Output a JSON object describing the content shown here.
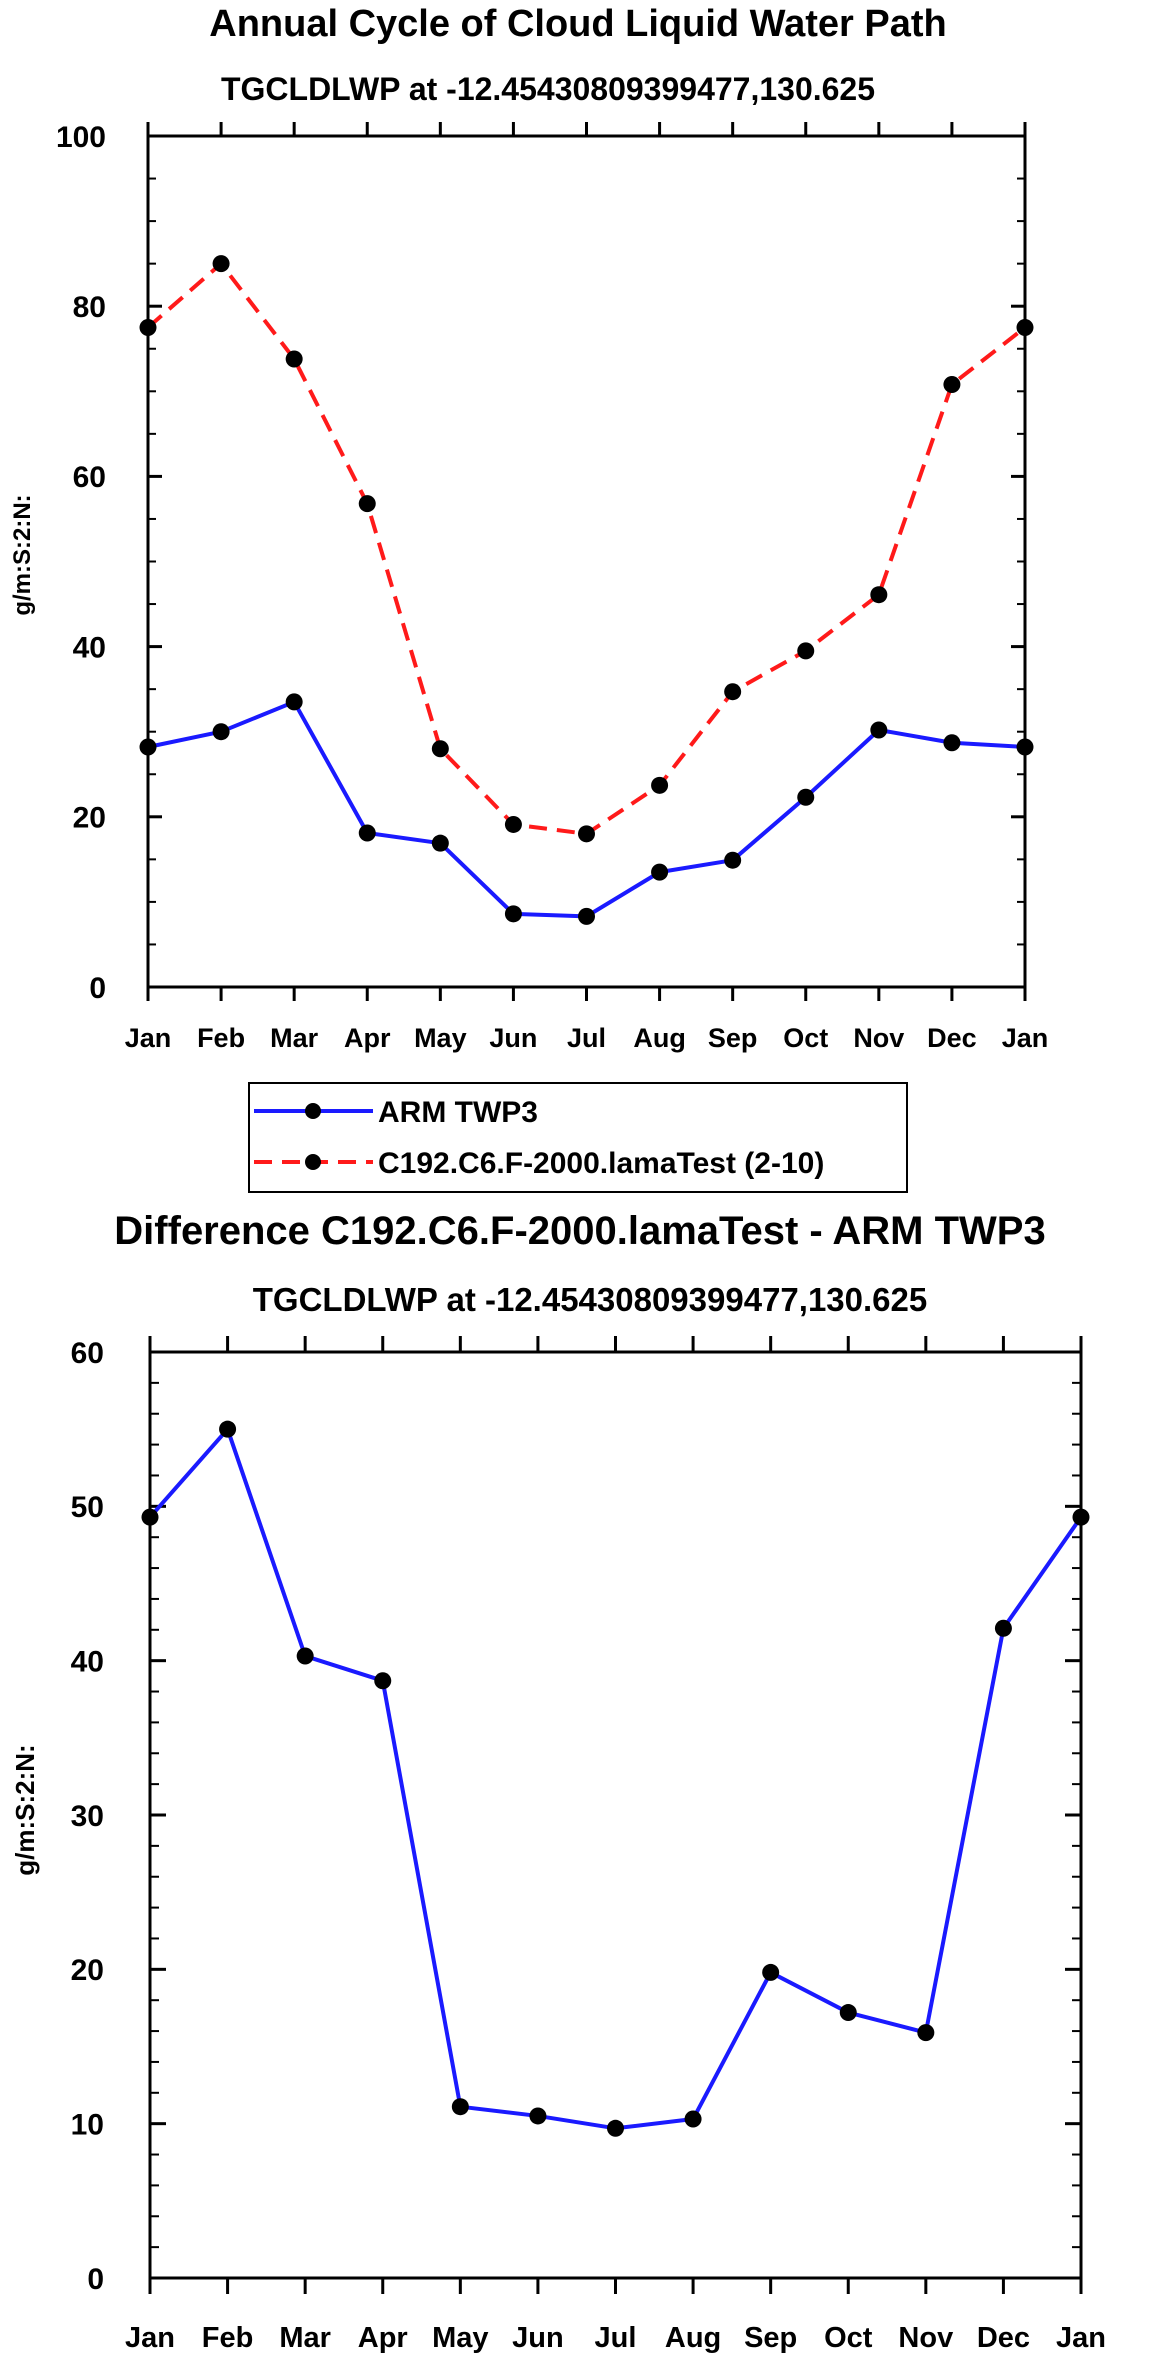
{
  "chart_data": [
    {
      "type": "line",
      "title": "Annual Cycle of Cloud Liquid Water Path",
      "subtitle": "TGCLDLWP at -12.45430809399477,130.625",
      "xlabel": "",
      "ylabel": "g/m:S:2:N:",
      "categories": [
        "Jan",
        "Feb",
        "Mar",
        "Apr",
        "May",
        "Jun",
        "Jul",
        "Aug",
        "Sep",
        "Oct",
        "Nov",
        "Dec",
        "Jan"
      ],
      "ylim": [
        0,
        100
      ],
      "yticks": [
        0,
        20,
        40,
        60,
        80,
        100
      ],
      "grid": false,
      "legend_position": "below",
      "series": [
        {
          "name": "ARM TWP3",
          "color": "#1a1aff",
          "dash": "solid",
          "values": [
            28.2,
            30.0,
            33.5,
            18.1,
            16.9,
            8.6,
            8.3,
            13.5,
            14.9,
            22.3,
            30.2,
            28.7,
            28.2
          ]
        },
        {
          "name": "C192.C6.F-2000.lamaTest (2-10)",
          "color": "#ff1a1a",
          "dash": "dashed",
          "values": [
            77.5,
            85.0,
            73.8,
            56.8,
            28.0,
            19.1,
            18.0,
            23.7,
            34.7,
            39.5,
            46.1,
            70.8,
            77.5
          ]
        }
      ]
    },
    {
      "type": "line",
      "title": "Difference C192.C6.F-2000.lamaTest - ARM TWP3",
      "subtitle": "TGCLDLWP at -12.45430809399477,130.625",
      "xlabel": "",
      "ylabel": "g/m:S:2:N:",
      "categories": [
        "Jan",
        "Feb",
        "Mar",
        "Apr",
        "May",
        "Jun",
        "Jul",
        "Aug",
        "Sep",
        "Oct",
        "Nov",
        "Dec",
        "Jan"
      ],
      "ylim": [
        0,
        60
      ],
      "yticks": [
        0,
        10,
        20,
        30,
        40,
        50,
        60
      ],
      "grid": false,
      "series": [
        {
          "name": "Difference",
          "color": "#1a1aff",
          "dash": "solid",
          "values": [
            49.3,
            55.0,
            40.3,
            38.7,
            11.1,
            10.5,
            9.7,
            10.3,
            19.8,
            17.2,
            15.9,
            42.1,
            49.3
          ]
        }
      ]
    }
  ]
}
